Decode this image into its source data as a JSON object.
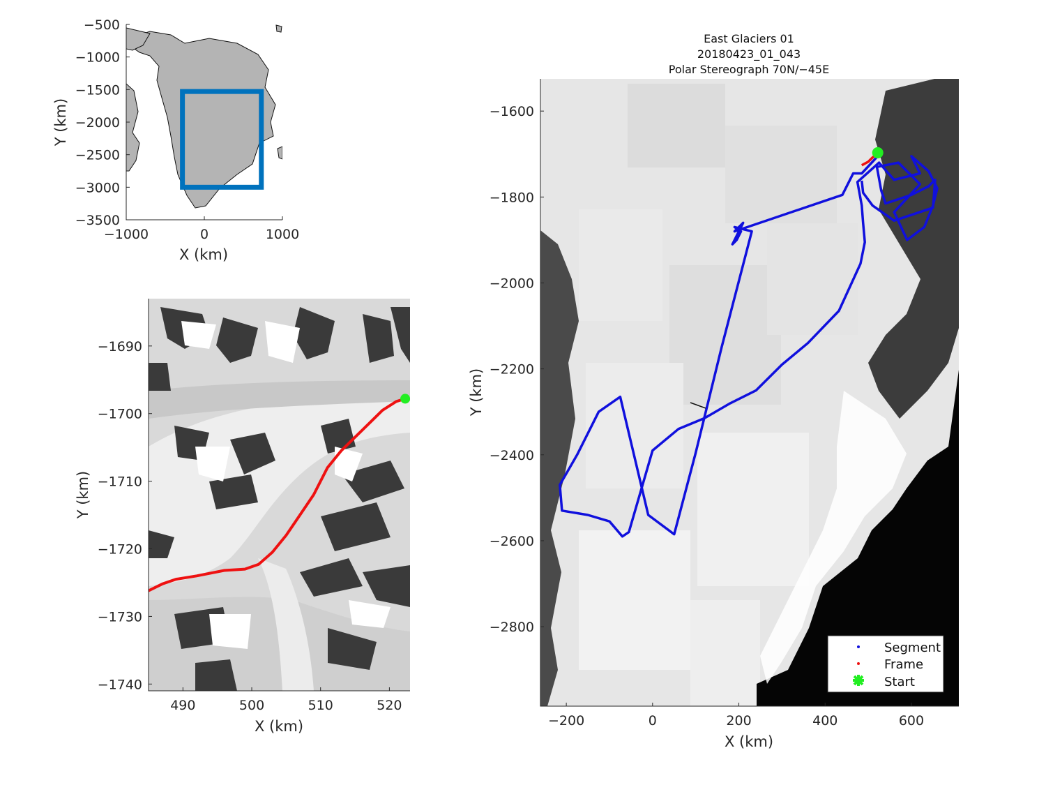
{
  "overview": {
    "x_ticks": [
      "−1000",
      "0",
      "1000"
    ],
    "y_ticks": [
      "−500",
      "−1000",
      "−1500",
      "−2000",
      "−2500",
      "−3000",
      "−3500"
    ],
    "xlabel": "X (km)",
    "ylabel": "Y (km)",
    "box_color": "#0072bd",
    "land_color": "#b4b4b4"
  },
  "zoom": {
    "x_ticks": [
      "490",
      "500",
      "510",
      "520"
    ],
    "y_ticks": [
      "−1690",
      "−1700",
      "−1710",
      "−1720",
      "−1730",
      "−1740"
    ],
    "xlabel": "X (km)",
    "ylabel": "Y (km)",
    "frame_color": "#ee1111",
    "start_color": "#22ee22"
  },
  "main": {
    "title_lines": [
      "East Glaciers 01",
      "20180423_01_043",
      "Polar Stereograph 70N/−45E"
    ],
    "x_ticks": [
      "−200",
      "0",
      "200",
      "400",
      "600"
    ],
    "y_ticks": [
      "−1600",
      "−1800",
      "−2000",
      "−2200",
      "−2400",
      "−2600",
      "−2800"
    ],
    "xlabel": "X (km)",
    "ylabel": "Y (km)",
    "segment_color": "#1010dd",
    "legend": [
      "Segment",
      "Frame",
      "Start"
    ]
  },
  "chart_data": [
    {
      "type": "scatter",
      "title": "",
      "xlabel": "X (km)",
      "ylabel": "Y (km)",
      "xlim": [
        -1000,
        1000
      ],
      "ylim": [
        -3500,
        -500
      ],
      "series": [],
      "box": {
        "x": [
          -280,
          730
        ],
        "y": [
          -3000,
          -1530
        ]
      }
    },
    {
      "type": "line",
      "title": "",
      "xlabel": "X (km)",
      "ylabel": "Y (km)",
      "xlim": [
        485,
        523
      ],
      "ylim": [
        -1741,
        -1683
      ],
      "series": [
        {
          "name": "Frame",
          "x": [
            485.0,
            487.0,
            489.0,
            492.0,
            496.0,
            499.0,
            501.0,
            503.0,
            505.0,
            507.0,
            509.0,
            511.0,
            513.0,
            515.0,
            517.0,
            519.0,
            521.0,
            522.3
          ],
          "y": [
            -1726.2,
            -1725.2,
            -1724.5,
            -1724.0,
            -1723.2,
            -1723.0,
            -1722.3,
            -1720.5,
            -1718.0,
            -1715.0,
            -1712.0,
            -1708.0,
            -1705.5,
            -1703.5,
            -1701.5,
            -1699.5,
            -1698.2,
            -1697.8
          ]
        }
      ],
      "start": {
        "x": 522.3,
        "y": -1697.8
      }
    },
    {
      "type": "line",
      "title": "East Glaciers 01",
      "subtitle": "20180423_01_043 / Polar Stereograph 70N/−45E",
      "xlabel": "X (km)",
      "ylabel": "Y (km)",
      "xlim": [
        -260,
        710
      ],
      "ylim": [
        -2985,
        -1525
      ],
      "legend_position": "bottom-right",
      "series": [
        {
          "name": "Segment",
          "x": [
            522,
            485,
            465,
            440,
            190,
            210,
            185,
            195,
            205,
            190,
            230,
            160,
            100,
            50,
            -10,
            -75,
            -125,
            -175,
            -215,
            -210,
            -150,
            -100,
            -70,
            -55,
            0,
            60,
            120,
            180,
            240,
            300,
            360,
            432,
            482,
            492,
            488,
            485,
            475,
            525,
            560,
            620,
            600,
            640,
            660,
            650,
            630,
            590,
            560,
            620,
            570,
            520,
            530,
            540,
            600,
            640,
            655,
            650,
            560,
            510,
            488,
            485
          ],
          "y": [
            -1705,
            -1745,
            -1745,
            -1795,
            -1880,
            -1860,
            -1910,
            -1900,
            -1880,
            -1870,
            -1880,
            -2150,
            -2395,
            -2585,
            -2540,
            -2265,
            -2300,
            -2400,
            -2470,
            -2530,
            -2540,
            -2555,
            -2590,
            -2580,
            -2390,
            -2340,
            -2315,
            -2280,
            -2250,
            -2190,
            -2140,
            -2065,
            -1955,
            -1905,
            -1860,
            -1820,
            -1765,
            -1720,
            -1760,
            -1745,
            -1705,
            -1740,
            -1780,
            -1820,
            -1870,
            -1900,
            -1835,
            -1770,
            -1720,
            -1730,
            -1785,
            -1815,
            -1795,
            -1775,
            -1760,
            -1825,
            -1855,
            -1820,
            -1790,
            -1762
          ]
        },
        {
          "name": "Frame",
          "x": [
            485,
            500,
            510,
            522
          ],
          "y": [
            -1726,
            -1718,
            -1708,
            -1698
          ]
        }
      ],
      "start": {
        "x": 522,
        "y": -1697
      }
    }
  ]
}
